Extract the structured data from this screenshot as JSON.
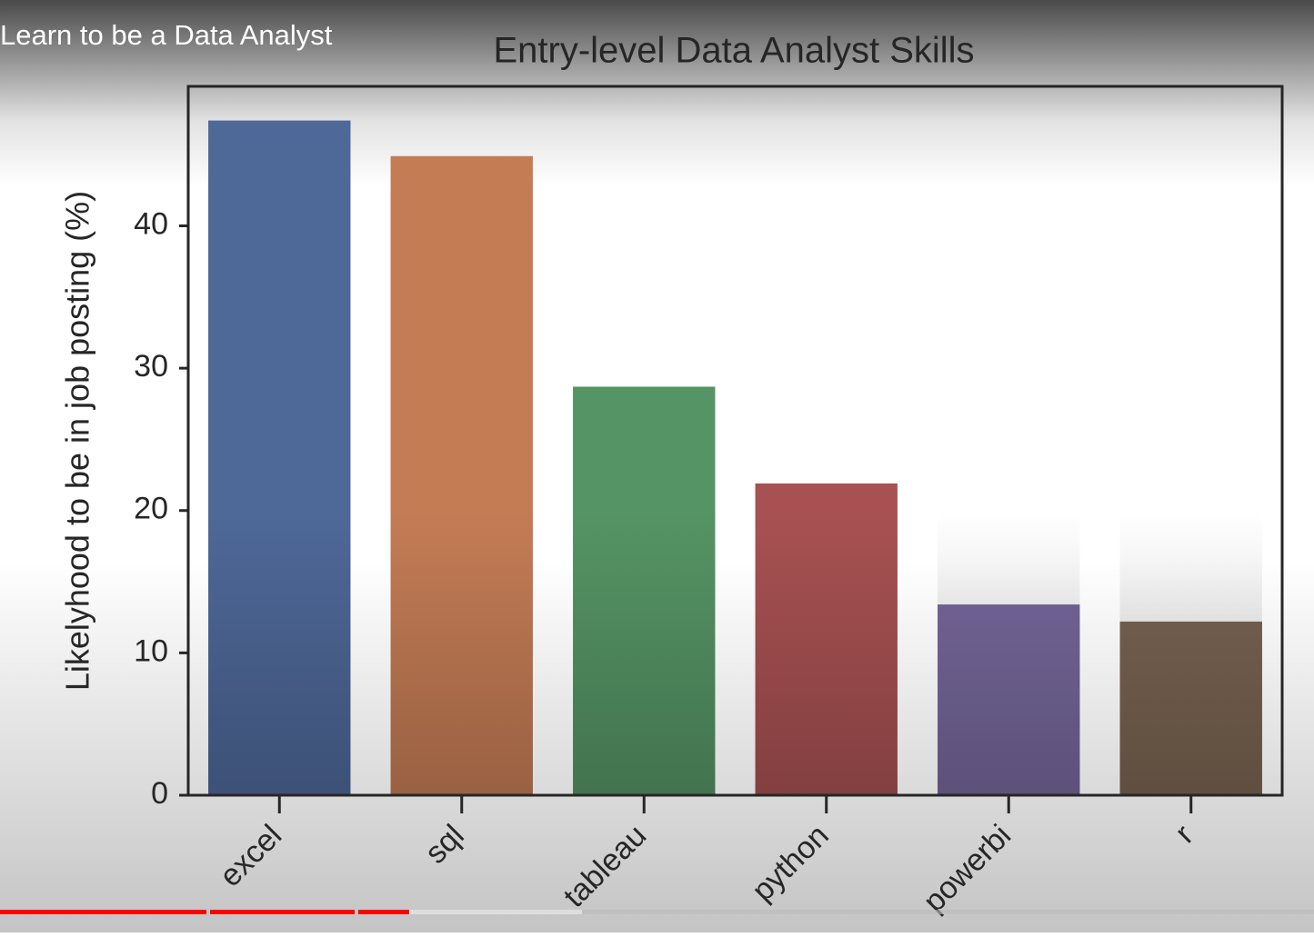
{
  "video_title": "Learn to be a Data Analyst",
  "chart_data": {
    "type": "bar",
    "title": "Entry-level Data Analyst Skills",
    "y_label": "Likelyhood to be in job posting (%)",
    "categories": [
      "excel",
      "sql",
      "tableau",
      "python",
      "powerbi",
      "r"
    ],
    "values": [
      47.4,
      44.9,
      28.7,
      21.9,
      13.4,
      12.2
    ],
    "colors": [
      "#4e6898",
      "#c47c55",
      "#559464",
      "#a85152",
      "#76689c",
      "#7a6452"
    ],
    "ylim": [
      0,
      49.8
    ],
    "yticks": [
      0,
      10,
      20,
      30,
      40
    ],
    "grid": false
  }
}
